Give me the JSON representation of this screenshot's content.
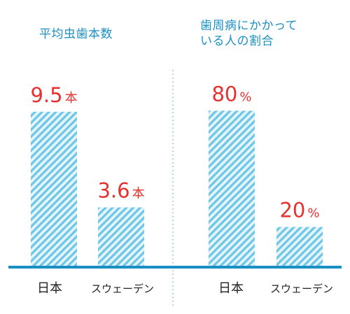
{
  "chart_data": [
    {
      "type": "bar",
      "title": "平均虫歯本数",
      "categories": [
        "日本",
        "スウェーデン"
      ],
      "values": [
        9.5,
        3.6
      ],
      "value_labels": [
        "9.5",
        "3.6"
      ],
      "unit": "本",
      "ylim": [
        0,
        11
      ]
    },
    {
      "type": "bar",
      "title_lines": [
        "歯周病にかかって",
        "いる人の割合"
      ],
      "categories": [
        "日本",
        "スウェーデン"
      ],
      "values": [
        80,
        20
      ],
      "value_labels": [
        "80",
        "20"
      ],
      "unit": "%",
      "ylim": [
        0,
        92
      ]
    }
  ],
  "colors": {
    "bar_stripe": "#6ec6e6",
    "bar_bg": "#e4f4fb",
    "axis": "#1a8fc4",
    "title": "#1a8fc4",
    "value": "#e8312f",
    "category": "#222222",
    "divider": "#7fb8d6"
  }
}
